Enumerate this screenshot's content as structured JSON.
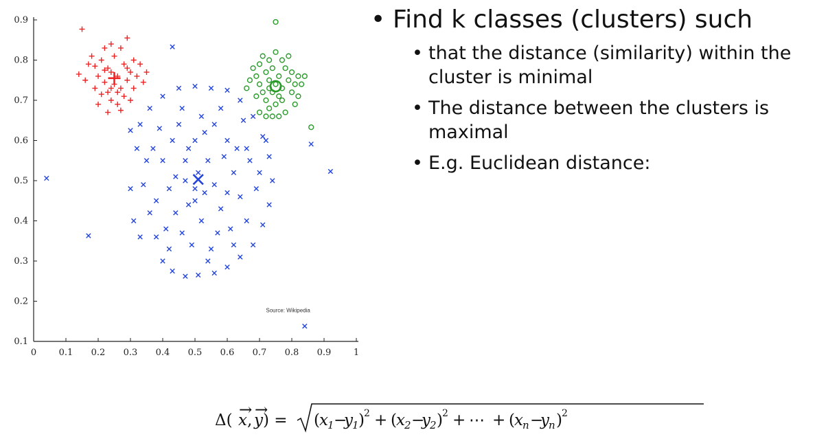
{
  "chart_data": {
    "type": "scatter",
    "title": "",
    "xlabel": "",
    "ylabel": "",
    "xlim": [
      0,
      1
    ],
    "ylim": [
      0.1,
      0.9
    ],
    "xticks": [
      "0",
      "0.1",
      "0.2",
      "0.3",
      "0.4",
      "0.5",
      "0.6",
      "0.7",
      "0.8",
      "0.9",
      "1"
    ],
    "yticks": [
      "0.1",
      "0.2",
      "0.3",
      "0.4",
      "0.5",
      "0.6",
      "0.7",
      "0.8",
      "0.9"
    ],
    "grid": false,
    "annotation": "Source: Wikipedia",
    "series": [
      {
        "marker": "+",
        "color": "#ee2222",
        "centroid": [
          0.25,
          0.755
        ],
        "points": [
          [
            0.15,
            0.877
          ],
          [
            0.17,
            0.79
          ],
          [
            0.18,
            0.81
          ],
          [
            0.14,
            0.765
          ],
          [
            0.19,
            0.73
          ],
          [
            0.2,
            0.76
          ],
          [
            0.21,
            0.8
          ],
          [
            0.21,
            0.715
          ],
          [
            0.22,
            0.83
          ],
          [
            0.22,
            0.745
          ],
          [
            0.23,
            0.78
          ],
          [
            0.23,
            0.72
          ],
          [
            0.24,
            0.84
          ],
          [
            0.24,
            0.77
          ],
          [
            0.24,
            0.7
          ],
          [
            0.25,
            0.81
          ],
          [
            0.25,
            0.74
          ],
          [
            0.26,
            0.76
          ],
          [
            0.26,
            0.69
          ],
          [
            0.27,
            0.83
          ],
          [
            0.27,
            0.73
          ],
          [
            0.28,
            0.79
          ],
          [
            0.28,
            0.71
          ],
          [
            0.29,
            0.855
          ],
          [
            0.29,
            0.75
          ],
          [
            0.3,
            0.77
          ],
          [
            0.3,
            0.7
          ],
          [
            0.31,
            0.8
          ],
          [
            0.31,
            0.73
          ],
          [
            0.32,
            0.76
          ],
          [
            0.33,
            0.79
          ],
          [
            0.34,
            0.745
          ],
          [
            0.2,
            0.69
          ],
          [
            0.23,
            0.67
          ],
          [
            0.27,
            0.675
          ],
          [
            0.19,
            0.785
          ],
          [
            0.16,
            0.75
          ],
          [
            0.35,
            0.77
          ],
          [
            0.26,
            0.72
          ],
          [
            0.24,
            0.73
          ],
          [
            0.22,
            0.775
          ],
          [
            0.29,
            0.78
          ]
        ]
      },
      {
        "marker": "o",
        "color": "#2a9a2a",
        "centroid": [
          0.75,
          0.735
        ],
        "points": [
          [
            0.75,
            0.895
          ],
          [
            0.68,
            0.78
          ],
          [
            0.69,
            0.76
          ],
          [
            0.7,
            0.74
          ],
          [
            0.7,
            0.79
          ],
          [
            0.71,
            0.72
          ],
          [
            0.71,
            0.81
          ],
          [
            0.72,
            0.7
          ],
          [
            0.72,
            0.77
          ],
          [
            0.73,
            0.75
          ],
          [
            0.73,
            0.8
          ],
          [
            0.73,
            0.68
          ],
          [
            0.74,
            0.72
          ],
          [
            0.74,
            0.78
          ],
          [
            0.75,
            0.74
          ],
          [
            0.75,
            0.82
          ],
          [
            0.75,
            0.69
          ],
          [
            0.76,
            0.76
          ],
          [
            0.76,
            0.71
          ],
          [
            0.77,
            0.8
          ],
          [
            0.77,
            0.73
          ],
          [
            0.78,
            0.78
          ],
          [
            0.78,
            0.67
          ],
          [
            0.79,
            0.75
          ],
          [
            0.79,
            0.81
          ],
          [
            0.8,
            0.72
          ],
          [
            0.8,
            0.77
          ],
          [
            0.81,
            0.74
          ],
          [
            0.81,
            0.69
          ],
          [
            0.82,
            0.76
          ],
          [
            0.82,
            0.71
          ],
          [
            0.83,
            0.74
          ],
          [
            0.84,
            0.76
          ],
          [
            0.69,
            0.71
          ],
          [
            0.7,
            0.67
          ],
          [
            0.72,
            0.66
          ],
          [
            0.74,
            0.66
          ],
          [
            0.76,
            0.66
          ],
          [
            0.77,
            0.7
          ],
          [
            0.86,
            0.633
          ],
          [
            0.67,
            0.75
          ],
          [
            0.66,
            0.73
          ],
          [
            0.73,
            0.73
          ]
        ]
      },
      {
        "marker": "x",
        "color": "#2244dd",
        "centroid": [
          0.51,
          0.503
        ],
        "points": [
          [
            0.43,
            0.833
          ],
          [
            0.04,
            0.506
          ],
          [
            0.92,
            0.523
          ],
          [
            0.84,
            0.138
          ],
          [
            0.17,
            0.363
          ],
          [
            0.86,
            0.591
          ],
          [
            0.3,
            0.625
          ],
          [
            0.32,
            0.58
          ],
          [
            0.34,
            0.49
          ],
          [
            0.36,
            0.42
          ],
          [
            0.38,
            0.36
          ],
          [
            0.4,
            0.3
          ],
          [
            0.43,
            0.275
          ],
          [
            0.47,
            0.262
          ],
          [
            0.51,
            0.265
          ],
          [
            0.56,
            0.27
          ],
          [
            0.6,
            0.285
          ],
          [
            0.64,
            0.31
          ],
          [
            0.68,
            0.34
          ],
          [
            0.71,
            0.39
          ],
          [
            0.73,
            0.44
          ],
          [
            0.74,
            0.5
          ],
          [
            0.73,
            0.56
          ],
          [
            0.71,
            0.61
          ],
          [
            0.68,
            0.66
          ],
          [
            0.64,
            0.7
          ],
          [
            0.6,
            0.725
          ],
          [
            0.55,
            0.73
          ],
          [
            0.5,
            0.735
          ],
          [
            0.45,
            0.73
          ],
          [
            0.4,
            0.71
          ],
          [
            0.36,
            0.68
          ],
          [
            0.33,
            0.64
          ],
          [
            0.4,
            0.55
          ],
          [
            0.42,
            0.48
          ],
          [
            0.44,
            0.42
          ],
          [
            0.46,
            0.37
          ],
          [
            0.48,
            0.58
          ],
          [
            0.5,
            0.45
          ],
          [
            0.52,
            0.4
          ],
          [
            0.54,
            0.55
          ],
          [
            0.56,
            0.49
          ],
          [
            0.58,
            0.43
          ],
          [
            0.6,
            0.6
          ],
          [
            0.62,
            0.52
          ],
          [
            0.64,
            0.46
          ],
          [
            0.66,
            0.4
          ],
          [
            0.45,
            0.64
          ],
          [
            0.47,
            0.5
          ],
          [
            0.49,
            0.34
          ],
          [
            0.53,
            0.62
          ],
          [
            0.55,
            0.33
          ],
          [
            0.57,
            0.37
          ],
          [
            0.59,
            0.56
          ],
          [
            0.61,
            0.38
          ],
          [
            0.63,
            0.58
          ],
          [
            0.65,
            0.65
          ],
          [
            0.67,
            0.55
          ],
          [
            0.69,
            0.48
          ],
          [
            0.38,
            0.45
          ],
          [
            0.37,
            0.58
          ],
          [
            0.39,
            0.63
          ],
          [
            0.41,
            0.38
          ],
          [
            0.43,
            0.6
          ],
          [
            0.44,
            0.51
          ],
          [
            0.46,
            0.68
          ],
          [
            0.48,
            0.44
          ],
          [
            0.5,
            0.6
          ],
          [
            0.52,
            0.66
          ],
          [
            0.54,
            0.3
          ],
          [
            0.56,
            0.64
          ],
          [
            0.58,
            0.68
          ],
          [
            0.62,
            0.34
          ],
          [
            0.66,
            0.58
          ],
          [
            0.35,
            0.55
          ],
          [
            0.3,
            0.48
          ],
          [
            0.31,
            0.4
          ],
          [
            0.33,
            0.36
          ],
          [
            0.7,
            0.52
          ],
          [
            0.72,
            0.6
          ],
          [
            0.42,
            0.33
          ],
          [
            0.6,
            0.47
          ],
          [
            0.51,
            0.52
          ],
          [
            0.5,
            0.48
          ],
          [
            0.53,
            0.47
          ],
          [
            0.47,
            0.55
          ]
        ]
      }
    ]
  },
  "bullets": {
    "main": "Find k classes (clusters) such",
    "sub": [
      " that the distance (similarity) within the cluster is minimal",
      "The distance between the clusters is maximal",
      "E.g. Euclidean distance:"
    ]
  },
  "formula": "Δ(x⃗, y⃗) = √((x₁−y₁)² + (x₂−y₂)² + ⋯ + (xₙ−yₙ)²)"
}
